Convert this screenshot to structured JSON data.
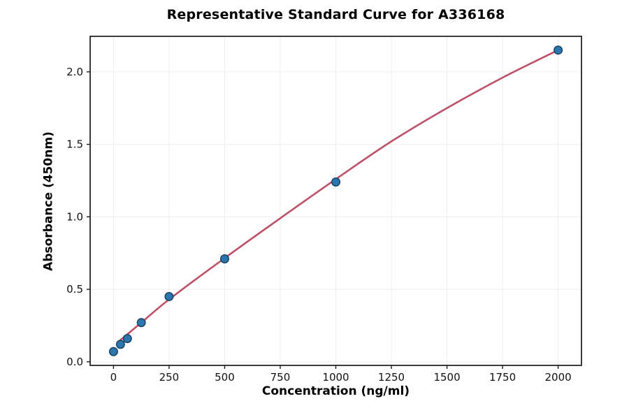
{
  "chart_data": {
    "type": "scatter",
    "title": "Representative Standard Curve for A336168",
    "xlabel": "Concentration (ng/ml)",
    "ylabel": "Absorbance (450nm)",
    "xlim": [
      -105,
      2105
    ],
    "ylim": [
      -0.025,
      2.245
    ],
    "grid": true,
    "legend": "none",
    "x_ticks": [
      0,
      250,
      500,
      750,
      1000,
      1250,
      1500,
      1750,
      2000
    ],
    "x_tick_labels": [
      "0",
      "250",
      "500",
      "750",
      "1000",
      "1250",
      "1500",
      "1750",
      "2000"
    ],
    "y_ticks": [
      0.0,
      0.5,
      1.0,
      1.5,
      2.0
    ],
    "y_tick_labels": [
      "0.0",
      "0.5",
      "1.0",
      "1.5",
      "2.0"
    ],
    "points": [
      {
        "x": 0,
        "y": 0.07
      },
      {
        "x": 31.25,
        "y": 0.12
      },
      {
        "x": 62.5,
        "y": 0.16
      },
      {
        "x": 125,
        "y": 0.27
      },
      {
        "x": 250,
        "y": 0.45
      },
      {
        "x": 500,
        "y": 0.71
      },
      {
        "x": 1000,
        "y": 1.24
      },
      {
        "x": 2000,
        "y": 2.15
      }
    ],
    "fit_curve": [
      {
        "x": 31,
        "y": 0.15
      },
      {
        "x": 125,
        "y": 0.27
      },
      {
        "x": 250,
        "y": 0.43
      },
      {
        "x": 500,
        "y": 0.715
      },
      {
        "x": 750,
        "y": 0.99
      },
      {
        "x": 1000,
        "y": 1.26
      },
      {
        "x": 1250,
        "y": 1.52
      },
      {
        "x": 1500,
        "y": 1.75
      },
      {
        "x": 1750,
        "y": 1.96
      },
      {
        "x": 2000,
        "y": 2.15
      }
    ],
    "colors": {
      "marker_fill": "#2b76ae",
      "marker_edge": "#16405f",
      "curve": "#bd5168",
      "grid": "#ededed",
      "frame": "#1a1a1a",
      "background": "#ffffff"
    }
  }
}
